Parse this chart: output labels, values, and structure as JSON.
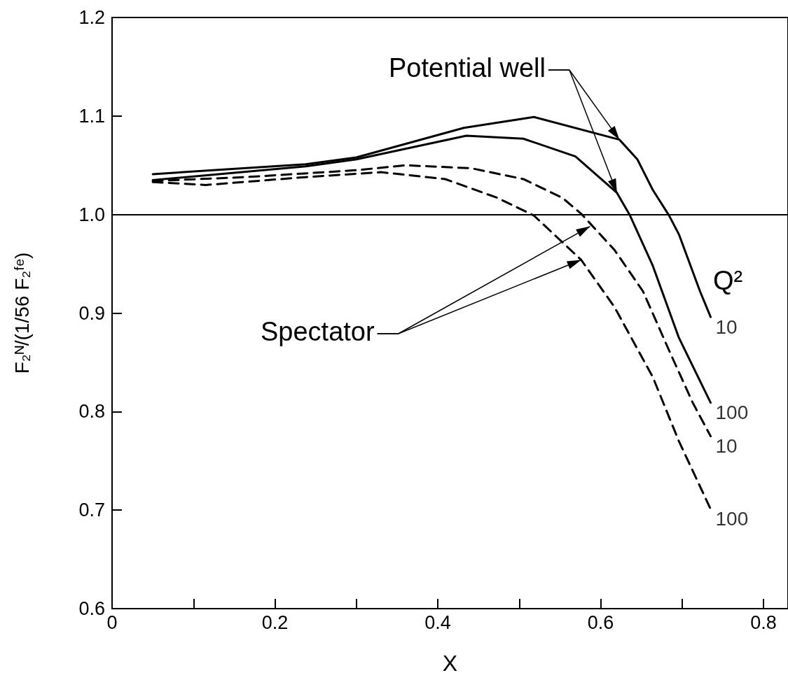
{
  "chart_data": {
    "type": "line",
    "xlabel": "X",
    "ylabel": "F₂ᴺ/(1/56 F₂ᶠᵉ)",
    "xlim": [
      0,
      0.83
    ],
    "ylim": [
      0.6,
      1.2
    ],
    "xticks": [
      0,
      {
        "value": 0.1,
        "label": null
      },
      0.2,
      {
        "value": 0.3,
        "label": null
      },
      0.4,
      {
        "value": 0.5,
        "label": null
      },
      0.6,
      {
        "value": 0.7,
        "label": null
      },
      0.8
    ],
    "yticks": [
      0.6,
      0.7,
      0.8,
      0.9,
      {
        "value": 1,
        "label": "1.0"
      },
      1.1,
      1.2
    ],
    "grid": false,
    "marker": "none",
    "series": [
      {
        "color": "#000000",
        "line_style": "solid",
        "x": [
          0.05,
          0.238,
          0.3,
          0.432,
          0.518,
          0.623,
          0.645,
          0.664,
          0.684,
          0.696,
          0.722,
          0.735
        ],
        "values": [
          1.041,
          1.051,
          1.058,
          1.088,
          1.099,
          1.076,
          1.056,
          1.025,
          0.999,
          0.98,
          0.922,
          0.896
        ]
      },
      {
        "color": "#000000",
        "line_style": "solid",
        "x": [
          0.05,
          0.238,
          0.3,
          0.435,
          0.505,
          0.569,
          0.62,
          0.636,
          0.664,
          0.696,
          0.735
        ],
        "values": [
          1.035,
          1.049,
          1.056,
          1.08,
          1.077,
          1.059,
          1.022,
          0.999,
          0.948,
          0.875,
          0.809
        ]
      },
      {
        "color": "#000000",
        "line_style": "dashed",
        "x": [
          0.05,
          0.164,
          0.3,
          0.361,
          0.441,
          0.505,
          0.553,
          0.577,
          0.617,
          0.652,
          0.684,
          0.713,
          0.735
        ],
        "values": [
          1.034,
          1.038,
          1.045,
          1.05,
          1.047,
          1.036,
          1.017,
          1.0,
          0.964,
          0.922,
          0.862,
          0.809,
          0.775
        ]
      },
      {
        "color": "#000000",
        "line_style": "dashed",
        "x": [
          0.05,
          0.115,
          0.238,
          0.33,
          0.409,
          0.473,
          0.518,
          0.576,
          0.617,
          0.664,
          0.696,
          0.735
        ],
        "values": [
          1.033,
          1.03,
          1.038,
          1.043,
          1.036,
          1.017,
          0.999,
          0.954,
          0.906,
          0.835,
          0.77,
          0.701
        ]
      }
    ],
    "ref_lines": [
      {
        "axis": "y",
        "value": 1,
        "color": "#000000",
        "line_style": "solid"
      }
    ],
    "annotations": [
      {
        "text": "Potential well",
        "x": 0.623,
        "y": 1.076
      },
      {
        "text": "Spectator",
        "x": 0.587,
        "y": 0.988
      },
      "Q²",
      {
        "text": "10",
        "x": 0.735,
        "y": 0.896
      },
      {
        "text": "100",
        "x": 0.735,
        "y": 0.809
      },
      {
        "text": "10",
        "x": 0.735,
        "y": 0.775
      },
      {
        "text": "100",
        "x": 0.735,
        "y": 0.701
      }
    ]
  }
}
